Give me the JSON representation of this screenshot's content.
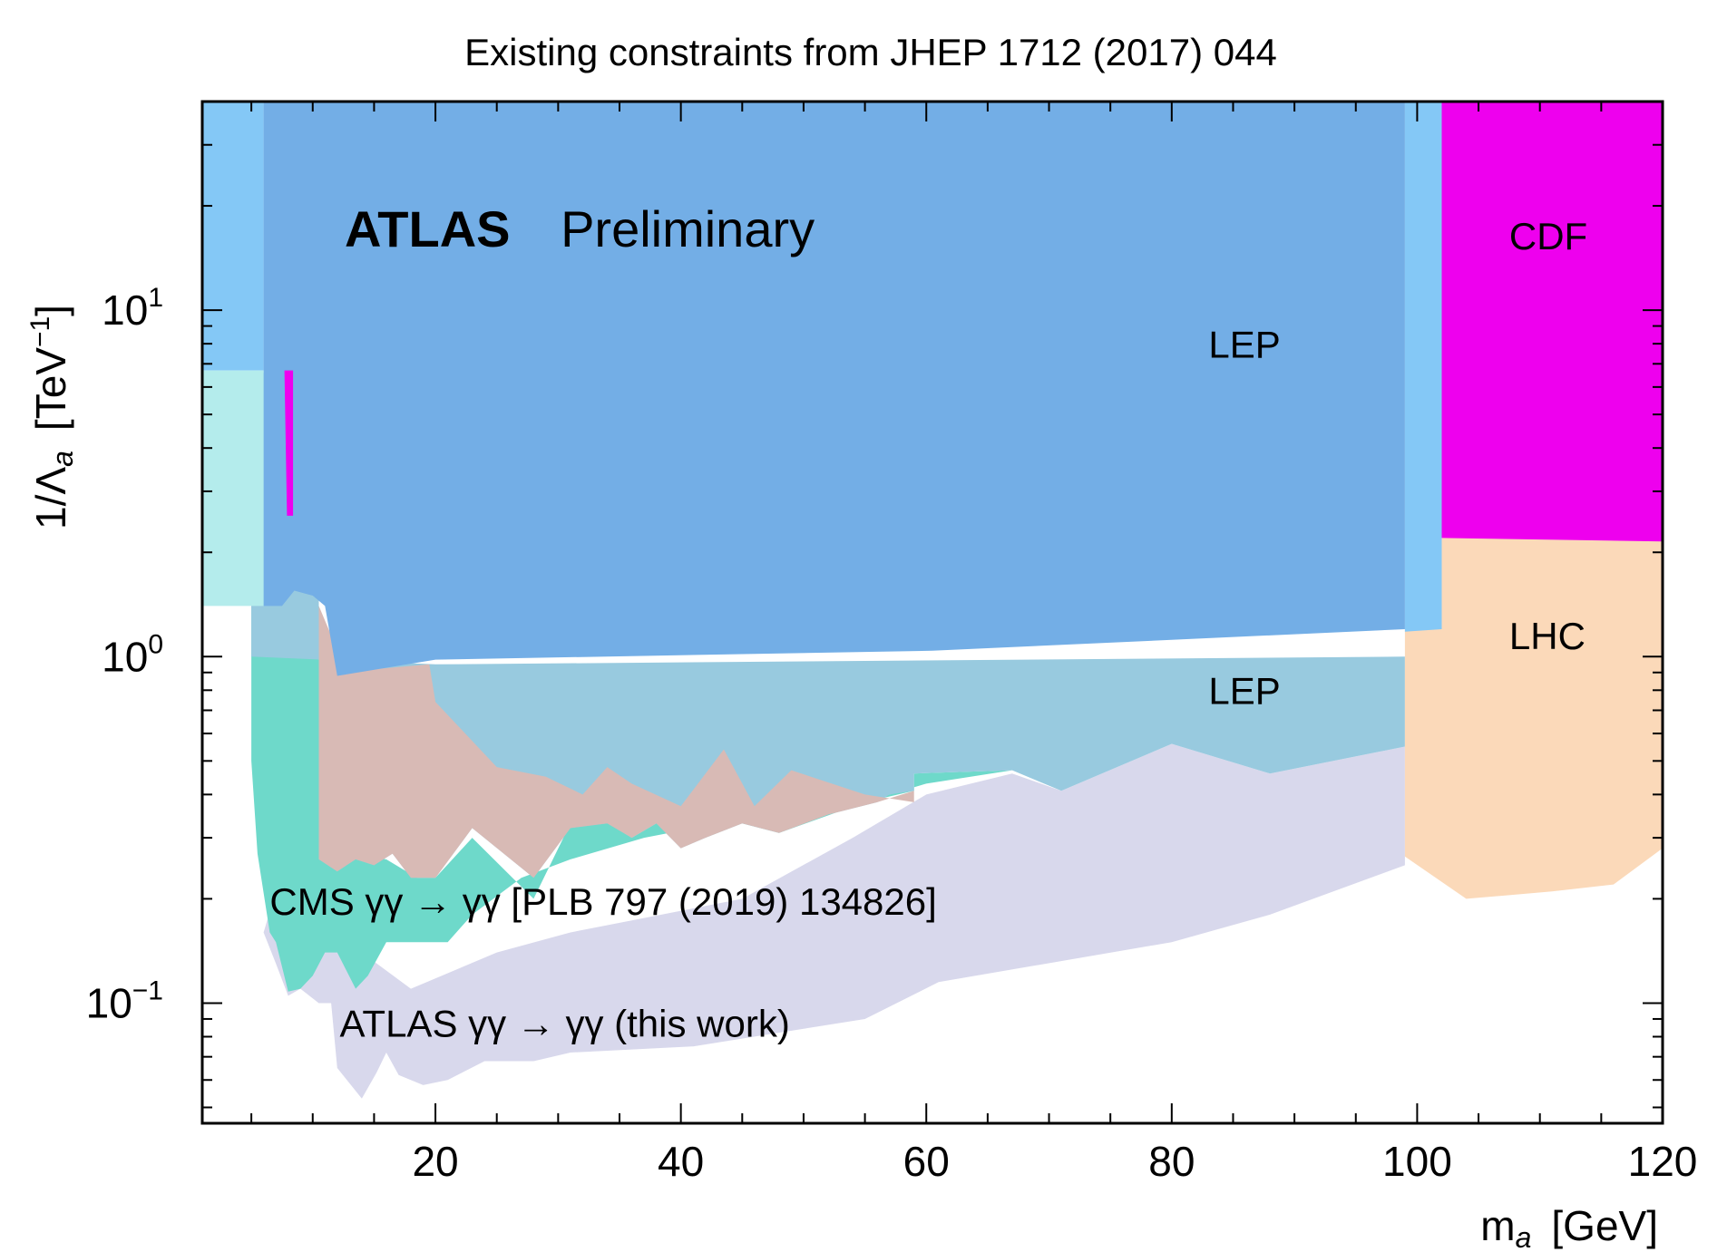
{
  "chart_data": {
    "type": "area",
    "title": "Existing constraints from JHEP 1712 (2017) 044",
    "xlabel": "m",
    "xlabel_sub": "a",
    "xlabel_unit": "[GeV]",
    "ylabel_main": "1/Λ",
    "ylabel_sub": "a",
    "ylabel_unit_open": "[TeV",
    "ylabel_unit_exp": "−1",
    "ylabel_unit_close": "]",
    "xlim": [
      1,
      120
    ],
    "ylim": [
      0.045,
      40
    ],
    "yscale": "log",
    "grid": false,
    "x_ticks": [
      {
        "value": 20,
        "label": "20"
      },
      {
        "value": 40,
        "label": "40"
      },
      {
        "value": 60,
        "label": "60"
      },
      {
        "value": 80,
        "label": "80"
      },
      {
        "value": 100,
        "label": "100"
      },
      {
        "value": 120,
        "label": "120"
      }
    ],
    "y_ticks": [
      {
        "value": 0.1,
        "base": "10",
        "exp": "−1"
      },
      {
        "value": 1,
        "base": "10",
        "exp": "0"
      },
      {
        "value": 10,
        "base": "10",
        "exp": "1"
      }
    ],
    "brand": {
      "bold": "ATLAS",
      "normal": "Preliminary"
    },
    "annotations": [
      {
        "text": "LEP",
        "x": 83,
        "y": 7.3
      },
      {
        "text": "LEP",
        "x": 83,
        "y": 0.73
      },
      {
        "text": "CDF",
        "x": 107.5,
        "y": 15
      },
      {
        "text": "LHC",
        "x": 107.5,
        "y": 1.05
      },
      {
        "text": "CMS γγ → γγ [PLB 797 (2019) 134826]",
        "x": 6.5,
        "y": 0.18
      },
      {
        "text": "ATLAS γγ → γγ (this work)",
        "x": 12.2,
        "y": 0.08
      }
    ],
    "regions": [
      {
        "id": "atlas-this-work",
        "color": "#D8D8EC",
        "points": [
          [
            6,
            0.16
          ],
          [
            7,
            0.13
          ],
          [
            8,
            0.105
          ],
          [
            9,
            0.11
          ],
          [
            10.5,
            0.1
          ],
          [
            11.5,
            0.1
          ],
          [
            12,
            0.065
          ],
          [
            14,
            0.053
          ],
          [
            15.2,
            0.063
          ],
          [
            16,
            0.072
          ],
          [
            17,
            0.062
          ],
          [
            19,
            0.058
          ],
          [
            21,
            0.06
          ],
          [
            24,
            0.068
          ],
          [
            28,
            0.068
          ],
          [
            31,
            0.072
          ],
          [
            41,
            0.075
          ],
          [
            55,
            0.09
          ],
          [
            61,
            0.115
          ],
          [
            80,
            0.15
          ],
          [
            88,
            0.18
          ],
          [
            99,
            0.25
          ],
          [
            99,
            0.55
          ],
          [
            88,
            0.46
          ],
          [
            80,
            0.56
          ],
          [
            71,
            0.41
          ],
          [
            67,
            0.46
          ],
          [
            60,
            0.4
          ],
          [
            54,
            0.3
          ],
          [
            45,
            0.2
          ],
          [
            31,
            0.16
          ],
          [
            25,
            0.14
          ],
          [
            18,
            0.11
          ],
          [
            14,
            0.14
          ],
          [
            10.5,
            0.18
          ],
          [
            7.5,
            0.24
          ]
        ]
      },
      {
        "id": "cms",
        "color": "#6ED9CA",
        "points": [
          [
            5,
            0.5
          ],
          [
            5.5,
            0.27
          ],
          [
            6.5,
            0.16
          ],
          [
            7,
            0.15
          ],
          [
            8,
            0.108
          ],
          [
            9,
            0.11
          ],
          [
            10,
            0.12
          ],
          [
            11,
            0.14
          ],
          [
            12,
            0.14
          ],
          [
            13.5,
            0.11
          ],
          [
            14.5,
            0.12
          ],
          [
            16,
            0.15
          ],
          [
            21,
            0.15
          ],
          [
            23,
            0.18
          ],
          [
            27,
            0.23
          ],
          [
            31,
            0.26
          ],
          [
            37,
            0.3
          ],
          [
            45,
            0.34
          ],
          [
            52,
            0.38
          ],
          [
            57,
            0.4
          ],
          [
            60,
            0.43
          ],
          [
            67,
            0.47
          ],
          [
            59,
            0.46
          ],
          [
            59,
            0.41
          ],
          [
            55,
            0.38
          ],
          [
            48,
            0.31
          ],
          [
            45,
            0.33
          ],
          [
            38,
            0.33
          ],
          [
            36,
            0.3
          ],
          [
            33,
            0.35
          ],
          [
            31,
            0.33
          ],
          [
            28,
            0.2
          ],
          [
            23,
            0.3
          ],
          [
            20,
            0.23
          ],
          [
            18.5,
            0.23
          ],
          [
            16,
            0.26
          ],
          [
            13,
            0.27
          ],
          [
            11,
            0.26
          ],
          [
            10.5,
            1.4
          ],
          [
            8,
            1.55
          ],
          [
            5,
            1.4
          ]
        ]
      },
      {
        "id": "lep-low",
        "color": "#98CADF",
        "points": [
          [
            5,
            6.6
          ],
          [
            7.5,
            6.6
          ],
          [
            8.5,
            2.5
          ],
          [
            9.5,
            1.7
          ],
          [
            10.5,
            1.6
          ],
          [
            10.5,
            0.26
          ],
          [
            12,
            0.24
          ],
          [
            13.5,
            0.26
          ],
          [
            15,
            0.25
          ],
          [
            16.5,
            0.27
          ],
          [
            18,
            0.23
          ],
          [
            20,
            0.23
          ],
          [
            23,
            0.32
          ],
          [
            28,
            0.23
          ],
          [
            31,
            0.32
          ],
          [
            34,
            0.33
          ],
          [
            36,
            0.3
          ],
          [
            38,
            0.33
          ],
          [
            40,
            0.28
          ],
          [
            42,
            0.3
          ],
          [
            45,
            0.33
          ],
          [
            48,
            0.31
          ],
          [
            52,
            0.35
          ],
          [
            56,
            0.38
          ],
          [
            57,
            0.4
          ],
          [
            59,
            0.41
          ],
          [
            59,
            0.46
          ],
          [
            67,
            0.47
          ],
          [
            71,
            0.41
          ],
          [
            80,
            0.56
          ],
          [
            88,
            0.46
          ],
          [
            99,
            0.55
          ],
          [
            99,
            1.0
          ],
          [
            20,
            0.95
          ],
          [
            5,
            1.0
          ]
        ]
      },
      {
        "id": "lep-low-rose",
        "color": "#D8BAB5",
        "points": [
          [
            10.5,
            0.26
          ],
          [
            12,
            0.24
          ],
          [
            13.5,
            0.26
          ],
          [
            15,
            0.25
          ],
          [
            16.5,
            0.27
          ],
          [
            18,
            0.23
          ],
          [
            20,
            0.23
          ],
          [
            23,
            0.32
          ],
          [
            28,
            0.23
          ],
          [
            31,
            0.32
          ],
          [
            34,
            0.33
          ],
          [
            36,
            0.3
          ],
          [
            38,
            0.33
          ],
          [
            40,
            0.28
          ],
          [
            42,
            0.3
          ],
          [
            45,
            0.33
          ],
          [
            48,
            0.31
          ],
          [
            52,
            0.35
          ],
          [
            56,
            0.38
          ],
          [
            59,
            0.41
          ],
          [
            59,
            0.38
          ],
          [
            55,
            0.4
          ],
          [
            49,
            0.47
          ],
          [
            46,
            0.37
          ],
          [
            43.5,
            0.54
          ],
          [
            40,
            0.37
          ],
          [
            36,
            0.43
          ],
          [
            34,
            0.48
          ],
          [
            32,
            0.4
          ],
          [
            29,
            0.45
          ],
          [
            25,
            0.48
          ],
          [
            20,
            0.74
          ],
          [
            19.5,
            0.95
          ],
          [
            15,
            0.92
          ],
          [
            12.5,
            0.95
          ],
          [
            10.5,
            1.4
          ]
        ]
      },
      {
        "id": "lhc",
        "color": "#FBD9B9",
        "points": [
          [
            99,
            2.2
          ],
          [
            120,
            2.2
          ],
          [
            120,
            0.28
          ],
          [
            116,
            0.22
          ],
          [
            111,
            0.21
          ],
          [
            104,
            0.2
          ],
          [
            99,
            0.265
          ]
        ]
      },
      {
        "id": "cdf",
        "color": "#EE00EE",
        "points": [
          [
            102,
            40
          ],
          [
            120,
            40
          ],
          [
            120,
            2.15
          ],
          [
            102,
            2.2
          ]
        ]
      },
      {
        "id": "lep-high-light",
        "color": "#84C8F6",
        "points": [
          [
            1,
            40
          ],
          [
            102,
            40
          ],
          [
            102,
            1.2
          ],
          [
            99,
            1.18
          ],
          [
            99,
            40
          ],
          [
            6,
            40
          ],
          [
            6,
            6.7
          ],
          [
            1,
            6.7
          ]
        ]
      },
      {
        "id": "lep-high",
        "color": "#73AEE6",
        "points": [
          [
            6,
            40
          ],
          [
            99,
            40
          ],
          [
            99,
            1.2
          ],
          [
            60.5,
            1.04
          ],
          [
            20,
            0.98
          ],
          [
            12,
            0.88
          ],
          [
            11,
            1.4
          ],
          [
            10,
            1.5
          ],
          [
            8.5,
            1.55
          ],
          [
            7.5,
            1.4
          ],
          [
            6,
            1.4
          ]
        ]
      },
      {
        "id": "cdf-sliver",
        "color": "#EE00EE",
        "points": [
          [
            7.7,
            6.7
          ],
          [
            8.4,
            6.7
          ],
          [
            8.4,
            2.55
          ],
          [
            7.9,
            2.55
          ]
        ]
      },
      {
        "id": "low-mass-teal",
        "color": "#B4ECEC",
        "points": [
          [
            1,
            6.7
          ],
          [
            6,
            6.7
          ],
          [
            6,
            1.4
          ],
          [
            1,
            1.4
          ]
        ]
      }
    ]
  }
}
